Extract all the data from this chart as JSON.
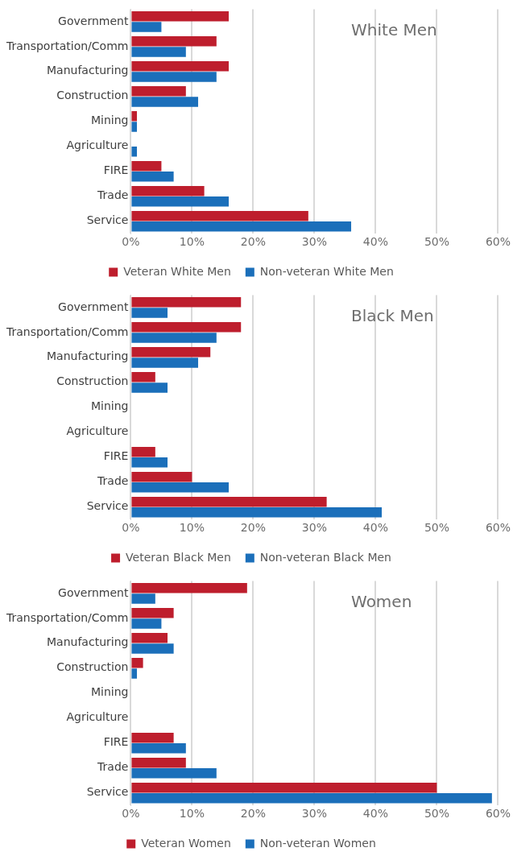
{
  "chart_data": [
    {
      "type": "bar",
      "orientation": "horizontal",
      "title": "White Men",
      "categories": [
        "Government",
        "Transportation/Comm",
        "Manufacturing",
        "Construction",
        "Mining",
        "Agriculture",
        "FIRE",
        "Trade",
        "Service"
      ],
      "series": [
        {
          "name": "Veteran White Men",
          "color": "#be1e2d",
          "values": [
            16,
            14,
            16,
            9,
            1,
            0,
            5,
            12,
            29
          ]
        },
        {
          "name": "Non-veteran White Men",
          "color": "#1b6fba",
          "values": [
            5,
            9,
            14,
            11,
            1,
            1,
            7,
            16,
            36
          ]
        }
      ],
      "xlim": [
        0,
        60
      ],
      "xticks": [
        {
          "value": 0,
          "label": "0%"
        },
        {
          "value": 10,
          "label": "10%"
        },
        {
          "value": 20,
          "label": "20%"
        },
        {
          "value": 30,
          "label": "30%"
        },
        {
          "value": 40,
          "label": "40%"
        },
        {
          "value": 50,
          "label": "50%"
        },
        {
          "value": 60,
          "label": "60%"
        }
      ],
      "grid": "x",
      "legend": "bottom"
    },
    {
      "type": "bar",
      "orientation": "horizontal",
      "title": "Black Men",
      "categories": [
        "Government",
        "Transportation/Comm",
        "Manufacturing",
        "Construction",
        "Mining",
        "Agriculture",
        "FIRE",
        "Trade",
        "Service"
      ],
      "series": [
        {
          "name": "Veteran Black Men",
          "color": "#be1e2d",
          "values": [
            18,
            18,
            13,
            4,
            0,
            0,
            4,
            10,
            32
          ]
        },
        {
          "name": "Non-veteran Black Men",
          "color": "#1b6fba",
          "values": [
            6,
            14,
            11,
            6,
            0,
            0,
            6,
            16,
            41
          ]
        }
      ],
      "xlim": [
        0,
        60
      ],
      "xticks": [
        {
          "value": 0,
          "label": "0%"
        },
        {
          "value": 10,
          "label": "10%"
        },
        {
          "value": 20,
          "label": "20%"
        },
        {
          "value": 30,
          "label": "30%"
        },
        {
          "value": 40,
          "label": "40%"
        },
        {
          "value": 50,
          "label": "50%"
        },
        {
          "value": 60,
          "label": "60%"
        }
      ],
      "grid": "x",
      "legend": "bottom"
    },
    {
      "type": "bar",
      "orientation": "horizontal",
      "title": "Women",
      "categories": [
        "Government",
        "Transportation/Comm",
        "Manufacturing",
        "Construction",
        "Mining",
        "Agriculture",
        "FIRE",
        "Trade",
        "Service"
      ],
      "series": [
        {
          "name": "Veteran Women",
          "color": "#be1e2d",
          "values": [
            19,
            7,
            6,
            2,
            0,
            0,
            7,
            9,
            50
          ]
        },
        {
          "name": "Non-veteran Women",
          "color": "#1b6fba",
          "values": [
            4,
            5,
            7,
            1,
            0,
            0,
            9,
            14,
            59
          ]
        }
      ],
      "xlim": [
        0,
        60
      ],
      "xticks": [
        {
          "value": 0,
          "label": "0%"
        },
        {
          "value": 10,
          "label": "10%"
        },
        {
          "value": 20,
          "label": "20%"
        },
        {
          "value": 30,
          "label": "30%"
        },
        {
          "value": 40,
          "label": "40%"
        },
        {
          "value": 50,
          "label": "50%"
        },
        {
          "value": 60,
          "label": "60%"
        }
      ],
      "grid": "x",
      "legend": "bottom"
    }
  ]
}
